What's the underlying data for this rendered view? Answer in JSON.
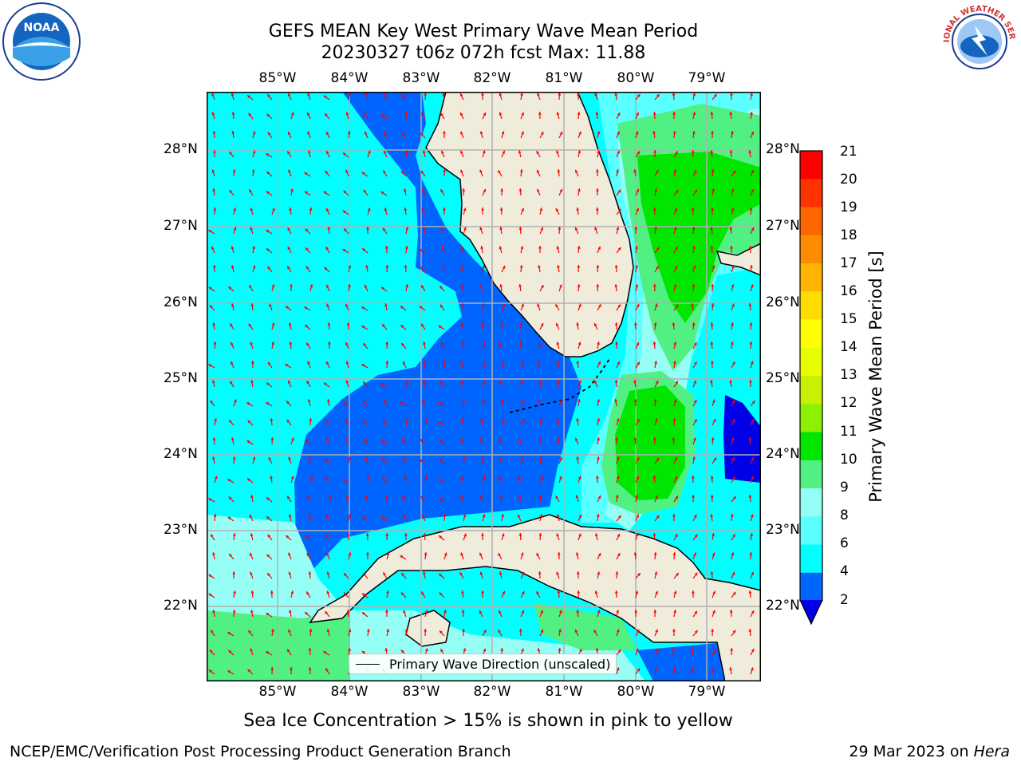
{
  "header": {
    "title_line1": "GEFS MEAN Key West Primary Wave Mean Period",
    "title_line2": "20230327 t06z 072h fcst   Max: 11.88"
  },
  "logos": {
    "noaa": "NOAA",
    "nws": "NATIONAL WEATHER SERVICE"
  },
  "axes": {
    "lon_labels": [
      "85°W",
      "84°W",
      "83°W",
      "82°W",
      "81°W",
      "80°W",
      "79°W"
    ],
    "lat_labels": [
      "28°N",
      "27°N",
      "26°N",
      "25°N",
      "24°N",
      "23°N",
      "22°N"
    ]
  },
  "colorbar": {
    "label": "Primary Wave Mean Period [s]",
    "ticks": [
      "21",
      "20",
      "19",
      "18",
      "17",
      "16",
      "15",
      "14",
      "13",
      "12",
      "11",
      "10",
      "9",
      "8",
      "6",
      "4",
      "2"
    ],
    "colors": [
      "#ff0000",
      "#ff3300",
      "#ff6600",
      "#ff8c00",
      "#ffb400",
      "#ffdc00",
      "#ffff00",
      "#e6ff00",
      "#c8f000",
      "#8cf000",
      "#00e600",
      "#50f082",
      "#96fff5",
      "#5affff",
      "#00ffff",
      "#0064ff",
      "#0000e6"
    ]
  },
  "legend": {
    "label": "Primary Wave Direction (unscaled)"
  },
  "notes": {
    "sea_ice": "Sea Ice Concentration > 15% is shown in pink to yellow",
    "credit": "NCEP/EMC/Verification Post Processing Product Generation Branch",
    "date_prefix": "29 Mar 2023 on ",
    "host": "Hera"
  }
}
